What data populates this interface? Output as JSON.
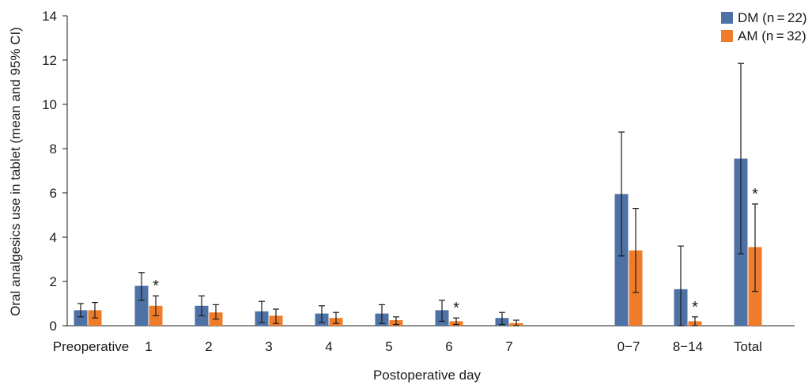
{
  "chart_data": {
    "type": "bar",
    "xlabel": "Postoperative day",
    "ylabel": "Oral analgesics use in tablet (mean and 95% CI)",
    "ylim": [
      0,
      14
    ],
    "yticks": [
      "0",
      "2",
      "4",
      "6",
      "8",
      "10",
      "12",
      "14"
    ],
    "categories": [
      "Preoperative",
      "1",
      "2",
      "3",
      "4",
      "5",
      "6",
      "7",
      "0−7",
      "8−14",
      "Total"
    ],
    "series": [
      {
        "name": "DM (n = 22)",
        "color": "#4f72a6",
        "values": [
          0.7,
          1.8,
          0.9,
          0.65,
          0.55,
          0.55,
          0.7,
          0.35,
          5.95,
          1.65,
          7.55
        ],
        "ci_low": [
          0.4,
          1.15,
          0.45,
          0.15,
          0.15,
          0.1,
          0.2,
          0.05,
          3.15,
          0.0,
          3.25
        ],
        "ci_high": [
          1.0,
          2.4,
          1.35,
          1.1,
          0.9,
          0.95,
          1.15,
          0.6,
          8.75,
          3.6,
          11.85
        ]
      },
      {
        "name": "AM (n = 32)",
        "color": "#ef7c2a",
        "values": [
          0.7,
          0.9,
          0.6,
          0.45,
          0.35,
          0.25,
          0.2,
          0.12,
          3.4,
          0.2,
          3.55
        ],
        "ci_low": [
          0.35,
          0.45,
          0.3,
          0.1,
          0.1,
          0.05,
          0.05,
          0.0,
          1.5,
          0.0,
          1.55
        ],
        "ci_high": [
          1.05,
          1.35,
          0.95,
          0.75,
          0.6,
          0.4,
          0.35,
          0.25,
          5.3,
          0.4,
          5.5
        ]
      }
    ],
    "significance": [
      "",
      "*",
      "",
      "",
      "",
      "",
      "*",
      "",
      "",
      "*",
      "*"
    ],
    "legend": "top-right"
  }
}
